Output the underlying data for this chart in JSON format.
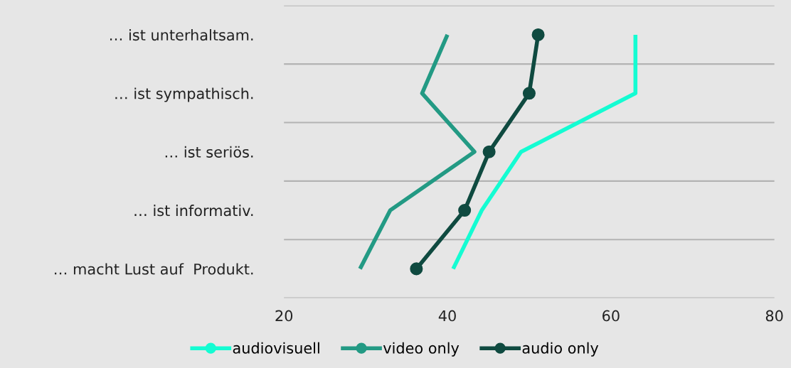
{
  "chart_data": {
    "type": "line",
    "orientation": "horizontal",
    "categories": [
      "… ist unterhaltsam.",
      "… ist sympathisch.",
      "… ist seriös.",
      "… ist informativ.",
      "… macht Lust auf  Produkt."
    ],
    "series": [
      {
        "name": "audiovisuell",
        "color": "#14fcd2",
        "values": [
          63.0,
          63.0,
          49.0,
          44.2,
          40.7
        ],
        "marker": "none"
      },
      {
        "name": "video only",
        "color": "#239a84",
        "values": [
          40.0,
          36.9,
          43.3,
          33.0,
          29.3
        ],
        "marker": "none"
      },
      {
        "name": "audio only",
        "color": "#0f4a40",
        "values": [
          51.1,
          50.0,
          45.1,
          42.1,
          36.2
        ],
        "marker": "circle"
      }
    ],
    "xlim": [
      20,
      80
    ],
    "xticks": [
      20,
      40,
      60,
      80
    ],
    "grid": "y",
    "legend": "bottom",
    "line_style": "solid"
  }
}
